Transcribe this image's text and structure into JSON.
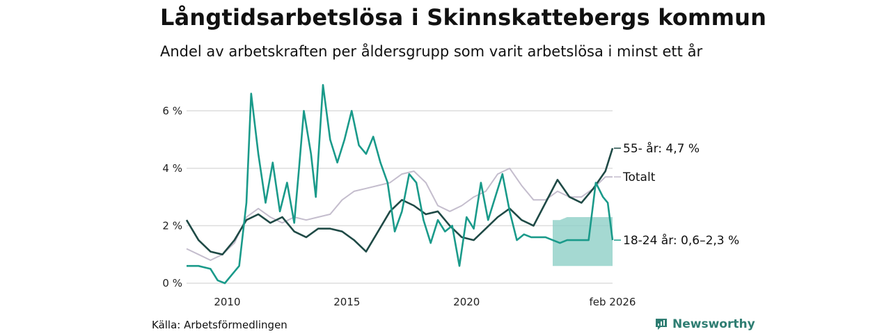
{
  "header": {
    "title": "Långtidsarbetslösa i Skinnskattebergs kommun",
    "subtitle": "Andel av arbetskraften per åldersgrupp som varit arbetslösa i minst ett år"
  },
  "footer": {
    "source": "Källa: Arbetsförmedlingen",
    "brand": "Newsworthy"
  },
  "colors": {
    "youth": "#1a9a8a",
    "youth_band": "#8fd0c7",
    "senior": "#1f4a46",
    "total": "#c4bdcd",
    "grid": "#dddddd",
    "brand": "#2e7d72"
  },
  "chart_data": {
    "type": "line",
    "title": "Långtidsarbetslösa i Skinnskattebergs kommun",
    "subtitle": "Andel av arbetskraften per åldersgrupp som varit arbetslösa i minst ett år",
    "xlabel": "",
    "ylabel": "",
    "xlim": [
      2008.3,
      2026.1
    ],
    "ylim": [
      0,
      7
    ],
    "x_ticks": [
      {
        "value": 2010,
        "label": "2010"
      },
      {
        "value": 2015,
        "label": "2015"
      },
      {
        "value": 2020,
        "label": "2020"
      },
      {
        "value": 2026.1,
        "label": "feb 2026"
      }
    ],
    "y_ticks": [
      {
        "value": 0,
        "label": "0 %"
      },
      {
        "value": 2,
        "label": "2 %"
      },
      {
        "value": 4,
        "label": "4 %"
      },
      {
        "value": 6,
        "label": "6 %"
      }
    ],
    "grid": true,
    "series": [
      {
        "key": "total",
        "name": "Totalt",
        "end_label": "Totalt",
        "points": [
          [
            2008.3,
            1.2
          ],
          [
            2008.8,
            1.0
          ],
          [
            2009.3,
            0.8
          ],
          [
            2009.8,
            1.0
          ],
          [
            2010.3,
            1.4
          ],
          [
            2010.8,
            2.3
          ],
          [
            2011.3,
            2.6
          ],
          [
            2011.8,
            2.3
          ],
          [
            2012.3,
            2.1
          ],
          [
            2012.8,
            2.3
          ],
          [
            2013.3,
            2.2
          ],
          [
            2013.8,
            2.3
          ],
          [
            2014.3,
            2.4
          ],
          [
            2014.8,
            2.9
          ],
          [
            2015.3,
            3.2
          ],
          [
            2015.8,
            3.3
          ],
          [
            2016.3,
            3.4
          ],
          [
            2016.8,
            3.5
          ],
          [
            2017.3,
            3.8
          ],
          [
            2017.8,
            3.9
          ],
          [
            2018.3,
            3.5
          ],
          [
            2018.8,
            2.7
          ],
          [
            2019.3,
            2.5
          ],
          [
            2019.8,
            2.7
          ],
          [
            2020.3,
            3.0
          ],
          [
            2020.8,
            3.2
          ],
          [
            2021.3,
            3.8
          ],
          [
            2021.8,
            4.0
          ],
          [
            2022.3,
            3.4
          ],
          [
            2022.8,
            2.9
          ],
          [
            2023.3,
            2.9
          ],
          [
            2023.8,
            3.2
          ],
          [
            2024.3,
            3.0
          ],
          [
            2024.8,
            3.0
          ],
          [
            2025.3,
            3.3
          ],
          [
            2025.8,
            3.7
          ],
          [
            2026.1,
            3.7
          ]
        ]
      },
      {
        "key": "senior",
        "name": "55- år",
        "end_label": "55- år: 4,7 %",
        "points": [
          [
            2008.3,
            2.2
          ],
          [
            2008.8,
            1.5
          ],
          [
            2009.3,
            1.1
          ],
          [
            2009.8,
            1.0
          ],
          [
            2010.3,
            1.5
          ],
          [
            2010.8,
            2.2
          ],
          [
            2011.3,
            2.4
          ],
          [
            2011.8,
            2.1
          ],
          [
            2012.3,
            2.3
          ],
          [
            2012.8,
            1.8
          ],
          [
            2013.3,
            1.6
          ],
          [
            2013.8,
            1.9
          ],
          [
            2014.3,
            1.9
          ],
          [
            2014.8,
            1.8
          ],
          [
            2015.3,
            1.5
          ],
          [
            2015.8,
            1.1
          ],
          [
            2016.3,
            1.8
          ],
          [
            2016.8,
            2.5
          ],
          [
            2017.3,
            2.9
          ],
          [
            2017.8,
            2.7
          ],
          [
            2018.3,
            2.4
          ],
          [
            2018.8,
            2.5
          ],
          [
            2019.3,
            2.0
          ],
          [
            2019.8,
            1.6
          ],
          [
            2020.3,
            1.5
          ],
          [
            2020.8,
            1.9
          ],
          [
            2021.3,
            2.3
          ],
          [
            2021.8,
            2.6
          ],
          [
            2022.3,
            2.2
          ],
          [
            2022.8,
            2.0
          ],
          [
            2023.3,
            2.8
          ],
          [
            2023.8,
            3.6
          ],
          [
            2024.3,
            3.0
          ],
          [
            2024.8,
            2.8
          ],
          [
            2025.3,
            3.3
          ],
          [
            2025.8,
            3.9
          ],
          [
            2026.1,
            4.7
          ]
        ]
      },
      {
        "key": "youth",
        "name": "18-24 år",
        "end_label": "18-24 år: 0,6–2,3 %",
        "points": [
          [
            2008.3,
            0.6
          ],
          [
            2008.8,
            0.6
          ],
          [
            2009.3,
            0.5
          ],
          [
            2009.6,
            0.1
          ],
          [
            2009.9,
            0.0
          ],
          [
            2010.2,
            0.3
          ],
          [
            2010.5,
            0.6
          ],
          [
            2010.8,
            2.8
          ],
          [
            2011.0,
            6.6
          ],
          [
            2011.3,
            4.5
          ],
          [
            2011.6,
            2.8
          ],
          [
            2011.9,
            4.2
          ],
          [
            2012.2,
            2.5
          ],
          [
            2012.5,
            3.5
          ],
          [
            2012.8,
            2.1
          ],
          [
            2013.0,
            4.0
          ],
          [
            2013.2,
            6.0
          ],
          [
            2013.5,
            4.5
          ],
          [
            2013.7,
            3.0
          ],
          [
            2014.0,
            6.9
          ],
          [
            2014.3,
            5.0
          ],
          [
            2014.6,
            4.2
          ],
          [
            2014.9,
            5.0
          ],
          [
            2015.2,
            6.0
          ],
          [
            2015.5,
            4.8
          ],
          [
            2015.8,
            4.5
          ],
          [
            2016.1,
            5.1
          ],
          [
            2016.4,
            4.2
          ],
          [
            2016.7,
            3.5
          ],
          [
            2017.0,
            1.8
          ],
          [
            2017.3,
            2.5
          ],
          [
            2017.6,
            3.8
          ],
          [
            2017.9,
            3.5
          ],
          [
            2018.2,
            2.2
          ],
          [
            2018.5,
            1.4
          ],
          [
            2018.8,
            2.2
          ],
          [
            2019.1,
            1.8
          ],
          [
            2019.4,
            2.0
          ],
          [
            2019.7,
            0.6
          ],
          [
            2020.0,
            2.3
          ],
          [
            2020.3,
            1.9
          ],
          [
            2020.6,
            3.5
          ],
          [
            2020.9,
            2.2
          ],
          [
            2021.2,
            3.0
          ],
          [
            2021.5,
            3.8
          ],
          [
            2021.8,
            2.5
          ],
          [
            2022.1,
            1.5
          ],
          [
            2022.4,
            1.7
          ],
          [
            2022.7,
            1.6
          ],
          [
            2023.0,
            1.6
          ],
          [
            2023.3,
            1.6
          ],
          [
            2023.6,
            1.5
          ],
          [
            2023.9,
            1.4
          ],
          [
            2024.2,
            1.5
          ],
          [
            2024.5,
            1.5
          ],
          [
            2024.8,
            1.5
          ],
          [
            2025.1,
            1.5
          ],
          [
            2025.4,
            3.5
          ],
          [
            2025.7,
            3.0
          ],
          [
            2025.9,
            2.8
          ],
          [
            2026.1,
            1.5
          ]
        ]
      }
    ],
    "band": {
      "series_key": "youth",
      "name": "18-24 år intervall",
      "points": [
        [
          2023.6,
          0.6,
          2.2
        ],
        [
          2023.9,
          0.6,
          2.2
        ],
        [
          2024.2,
          0.6,
          2.3
        ],
        [
          2024.5,
          0.6,
          2.3
        ],
        [
          2024.8,
          0.6,
          2.3
        ],
        [
          2025.1,
          0.6,
          2.3
        ],
        [
          2025.4,
          0.6,
          2.3
        ],
        [
          2025.7,
          0.6,
          2.3
        ],
        [
          2025.9,
          0.6,
          2.3
        ],
        [
          2026.1,
          0.6,
          2.3
        ]
      ]
    }
  }
}
